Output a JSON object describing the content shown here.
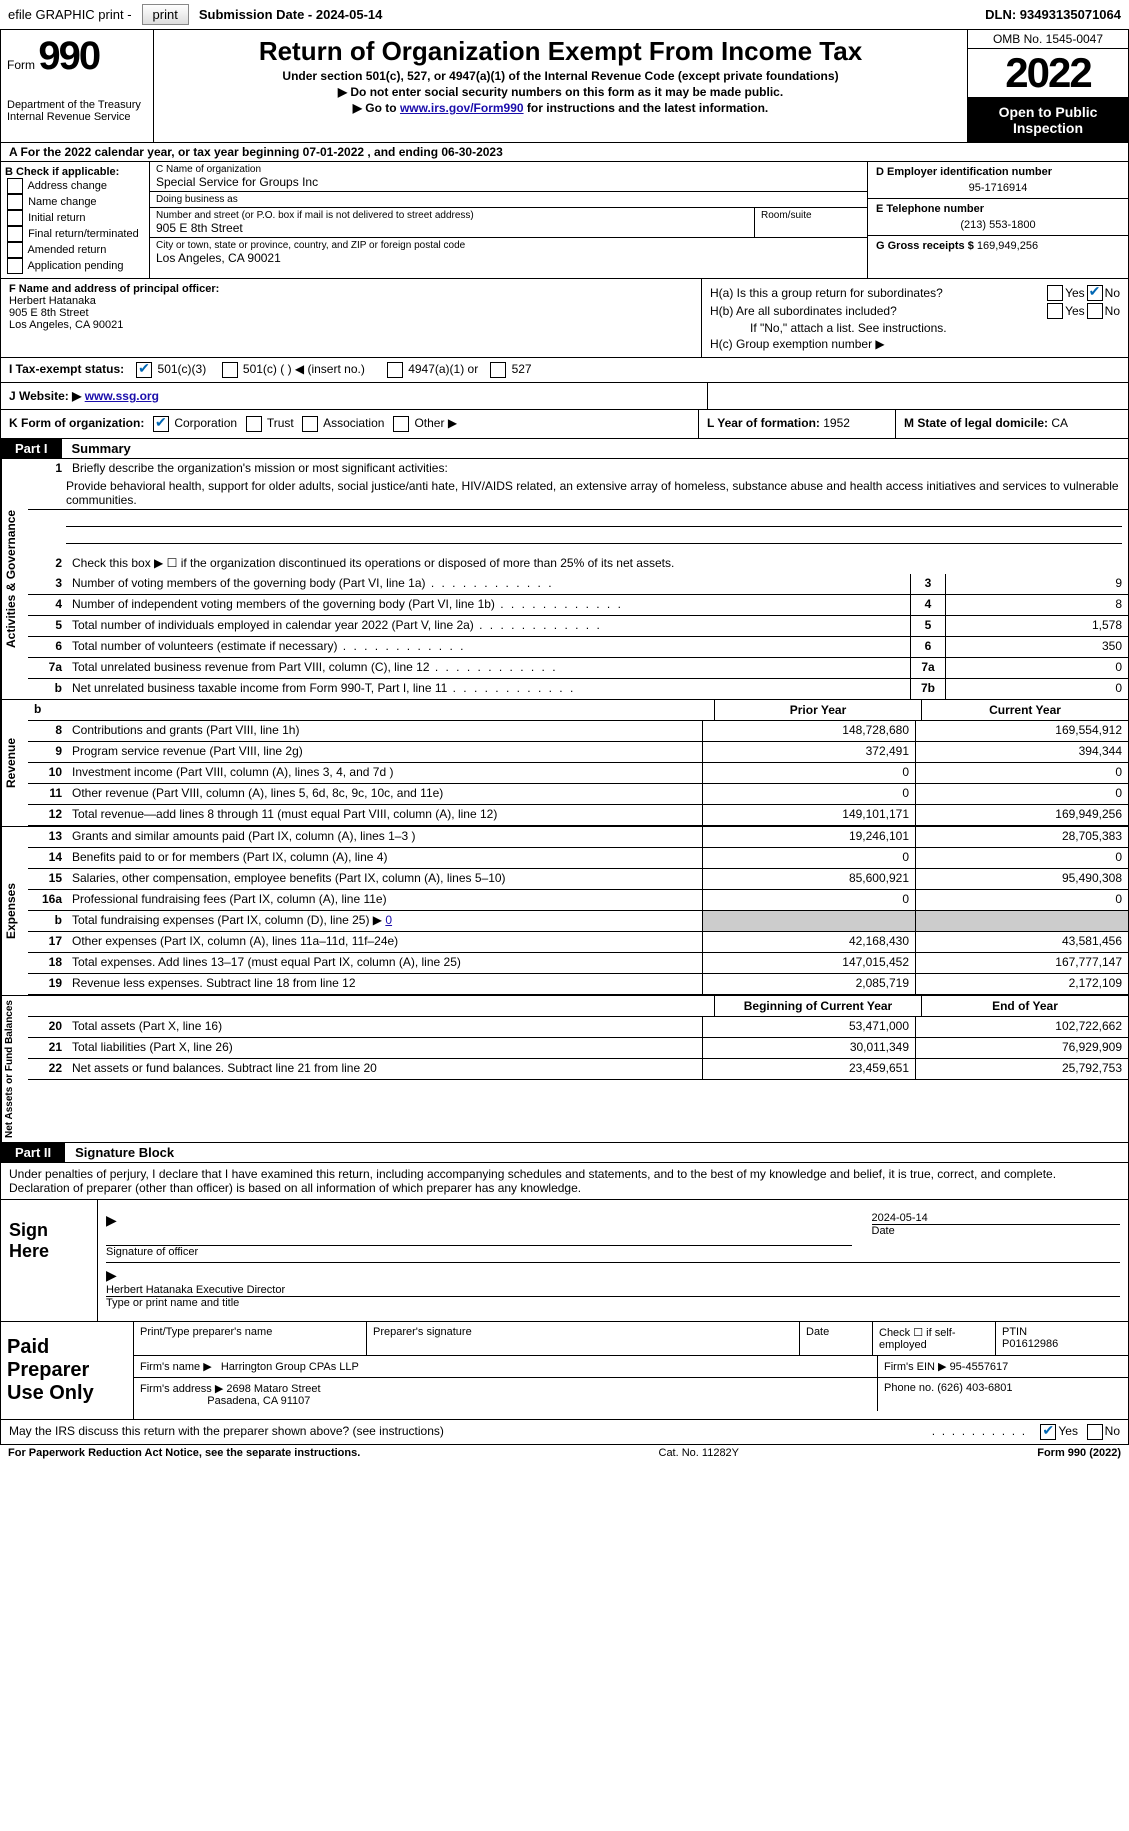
{
  "top_bar": {
    "efile_label": "efile GRAPHIC print -",
    "submission_label": "Submission Date - 2024-05-14",
    "dln_label": "DLN: 93493135071064"
  },
  "header": {
    "form_label": "Form",
    "form_number": "990",
    "dept": "Department of the Treasury",
    "irs": "Internal Revenue Service",
    "title": "Return of Organization Exempt From Income Tax",
    "subtitle": "Under section 501(c), 527, or 4947(a)(1) of the Internal Revenue Code (except private foundations)",
    "instr1": "▶ Do not enter social security numbers on this form as it may be made public.",
    "instr2_pre": "▶ Go to ",
    "instr2_link": "www.irs.gov/Form990",
    "instr2_post": " for instructions and the latest information.",
    "omb": "OMB No. 1545-0047",
    "year": "2022",
    "open_public": "Open to Public Inspection"
  },
  "year_line": "A For the 2022 calendar year, or tax year beginning 07-01-2022    , and ending 06-30-2023",
  "section_b": {
    "header": "B Check if applicable:",
    "items": [
      "Address change",
      "Name change",
      "Initial return",
      "Final return/terminated",
      "Amended return",
      "Application pending"
    ]
  },
  "section_c": {
    "name_label": "C Name of organization",
    "name": "Special Service for Groups Inc",
    "dba_label": "Doing business as",
    "dba": "",
    "street_label": "Number and street (or P.O. box if mail is not delivered to street address)",
    "street": "905 E 8th Street",
    "room_label": "Room/suite",
    "room": "",
    "city_label": "City or town, state or province, country, and ZIP or foreign postal code",
    "city": "Los Angeles, CA  90021"
  },
  "section_d": {
    "ein_label": "D Employer identification number",
    "ein": "95-1716914",
    "phone_label": "E Telephone number",
    "phone": "(213) 553-1800",
    "gross_label": "G Gross receipts $",
    "gross": "169,949,256"
  },
  "section_f": {
    "label": "F Name and address of principal officer:",
    "name": "Herbert Hatanaka",
    "street": "905 E 8th Street",
    "city": "Los Angeles, CA  90021"
  },
  "section_h": {
    "ha": "H(a)  Is this a group return for subordinates?",
    "hb": "H(b)  Are all subordinates included?",
    "hb_note": "If \"No,\" attach a list. See instructions.",
    "hc": "H(c)  Group exemption number ▶",
    "yes": "Yes",
    "no": "No"
  },
  "row_i": {
    "label": "I  Tax-exempt status:",
    "opt1": "501(c)(3)",
    "opt2_a": "501(c) (  ) ",
    "opt2_b": "◀ (insert no.)",
    "opt3": "4947(a)(1) or",
    "opt4": "527"
  },
  "row_j": {
    "label": "J  Website: ▶ ",
    "url": "www.ssg.org"
  },
  "row_k": {
    "label": "K Form of organization:",
    "corp": "Corporation",
    "trust": "Trust",
    "assoc": "Association",
    "other": "Other ▶",
    "year_label": "L Year of formation: ",
    "year": "1952",
    "state_label": "M State of legal domicile: ",
    "state": "CA"
  },
  "part1": {
    "label": "Part I",
    "title": "Summary"
  },
  "summary": {
    "sideways_a": "Activities & Governance",
    "sideways_r": "Revenue",
    "sideways_e": "Expenses",
    "sideways_n": "Net Assets or Fund Balances",
    "line1_label": "Briefly describe the organization's mission or most significant activities:",
    "line1_text": "Provide behavioral health, support for older adults, social justice/anti hate, HIV/AIDS related, an extensive array of homeless, substance abuse and health access initiatives and services to vulnerable communities.",
    "line2": "Check this box ▶ ☐ if the organization discontinued its operations or disposed of more than 25% of its net assets.",
    "lines_a": [
      {
        "n": "3",
        "d": "Number of voting members of the governing body (Part VI, line 1a)",
        "box": "3",
        "v": "9"
      },
      {
        "n": "4",
        "d": "Number of independent voting members of the governing body (Part VI, line 1b)",
        "box": "4",
        "v": "8"
      },
      {
        "n": "5",
        "d": "Total number of individuals employed in calendar year 2022 (Part V, line 2a)",
        "box": "5",
        "v": "1,578"
      },
      {
        "n": "6",
        "d": "Total number of volunteers (estimate if necessary)",
        "box": "6",
        "v": "350"
      },
      {
        "n": "7a",
        "d": "Total unrelated business revenue from Part VIII, column (C), line 12",
        "box": "7a",
        "v": "0"
      },
      {
        "n": "b",
        "d": "Net unrelated business taxable income from Form 990-T, Part I, line 11",
        "box": "7b",
        "v": "0"
      }
    ],
    "prior_label": "Prior Year",
    "curr_label": "Current Year",
    "lines_r": [
      {
        "n": "8",
        "d": "Contributions and grants (Part VIII, line 1h)",
        "p": "148,728,680",
        "c": "169,554,912"
      },
      {
        "n": "9",
        "d": "Program service revenue (Part VIII, line 2g)",
        "p": "372,491",
        "c": "394,344"
      },
      {
        "n": "10",
        "d": "Investment income (Part VIII, column (A), lines 3, 4, and 7d )",
        "p": "0",
        "c": "0"
      },
      {
        "n": "11",
        "d": "Other revenue (Part VIII, column (A), lines 5, 6d, 8c, 9c, 10c, and 11e)",
        "p": "0",
        "c": "0"
      },
      {
        "n": "12",
        "d": "Total revenue—add lines 8 through 11 (must equal Part VIII, column (A), line 12)",
        "p": "149,101,171",
        "c": "169,949,256"
      }
    ],
    "lines_e": [
      {
        "n": "13",
        "d": "Grants and similar amounts paid (Part IX, column (A), lines 1–3 )",
        "p": "19,246,101",
        "c": "28,705,383"
      },
      {
        "n": "14",
        "d": "Benefits paid to or for members (Part IX, column (A), line 4)",
        "p": "0",
        "c": "0"
      },
      {
        "n": "15",
        "d": "Salaries, other compensation, employee benefits (Part IX, column (A), lines 5–10)",
        "p": "85,600,921",
        "c": "95,490,308"
      },
      {
        "n": "16a",
        "d": "Professional fundraising fees (Part IX, column (A), line 11e)",
        "p": "0",
        "c": "0"
      },
      {
        "n": "b",
        "d": "Total fundraising expenses (Part IX, column (D), line 25) ▶",
        "p": "shaded",
        "c": "shaded",
        "extra": "0"
      },
      {
        "n": "17",
        "d": "Other expenses (Part IX, column (A), lines 11a–11d, 11f–24e)",
        "p": "42,168,430",
        "c": "43,581,456"
      },
      {
        "n": "18",
        "d": "Total expenses. Add lines 13–17 (must equal Part IX, column (A), line 25)",
        "p": "147,015,452",
        "c": "167,777,147"
      },
      {
        "n": "19",
        "d": "Revenue less expenses. Subtract line 18 from line 12",
        "p": "2,085,719",
        "c": "2,172,109"
      }
    ],
    "begin_label": "Beginning of Current Year",
    "end_label": "End of Year",
    "lines_n": [
      {
        "n": "20",
        "d": "Total assets (Part X, line 16)",
        "p": "53,471,000",
        "c": "102,722,662"
      },
      {
        "n": "21",
        "d": "Total liabilities (Part X, line 26)",
        "p": "30,011,349",
        "c": "76,929,909"
      },
      {
        "n": "22",
        "d": "Net assets or fund balances. Subtract line 21 from line 20",
        "p": "23,459,651",
        "c": "25,792,753"
      }
    ]
  },
  "part2": {
    "label": "Part II",
    "title": "Signature Block"
  },
  "sig_text": "Under penalties of perjury, I declare that I have examined this return, including accompanying schedules and statements, and to the best of my knowledge and belief, it is true, correct, and complete. Declaration of preparer (other than officer) is based on all information of which preparer has any knowledge.",
  "sign_here": {
    "label": "Sign Here",
    "sig_officer": "Signature of officer",
    "date": "2024-05-14",
    "date_label": "Date",
    "name": "Herbert Hatanaka  Executive Director",
    "name_label": "Type or print name and title"
  },
  "paid_prep": {
    "label": "Paid Preparer Use Only",
    "r1c1": "Print/Type preparer's name",
    "r1c2": "Preparer's signature",
    "r1c3": "Date",
    "r1c4_a": "Check ☐ if self-employed",
    "r1c5_label": "PTIN",
    "r1c5": "P01612986",
    "r2c1_label": "Firm's name    ▶",
    "r2c1": "Harrington Group CPAs LLP",
    "r2c2_label": "Firm's EIN ▶",
    "r2c2": "95-4557617",
    "r3c1_label": "Firm's address ▶",
    "r3c1_a": "2698 Mataro Street",
    "r3c1_b": "Pasadena, CA  91107",
    "r3c2_label": "Phone no.",
    "r3c2": "(626) 403-6801"
  },
  "discuss": {
    "text": "May the IRS discuss this return with the preparer shown above? (see instructions)",
    "yes": "Yes",
    "no": "No"
  },
  "footer": {
    "left": "For Paperwork Reduction Act Notice, see the separate instructions.",
    "mid": "Cat. No. 11282Y",
    "right": "Form 990 (2022)"
  }
}
